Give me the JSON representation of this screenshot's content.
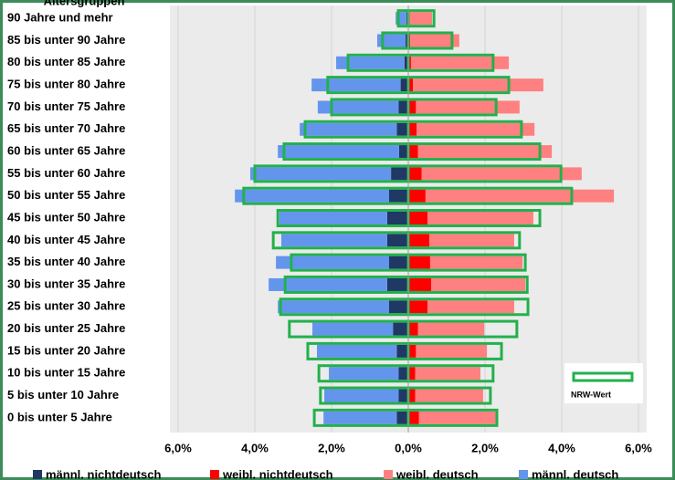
{
  "chart_data": {
    "type": "pyramid",
    "axis_title": "Altersgruppen",
    "categories": [
      "90 Jahre und mehr",
      "85 bis unter 90 Jahre",
      "80 bis unter 85 Jahre",
      "75 bis unter 80 Jahre",
      "70 bis unter 75 Jahre",
      "65 bis unter 70 Jahre",
      "60 bis unter 65 Jahre",
      "55 bis unter 60 Jahre",
      "50 bis unter 55 Jahre",
      "45 bis unter 50 Jahre",
      "40 bis unter 45 Jahre",
      "35 bis unter 40 Jahre",
      "30 bis unter 35 Jahre",
      "25 bis unter 30 Jahre",
      "20 bis unter 25 Jahre",
      "15 bis unter 20 Jahre",
      "10 bis unter 15 Jahre",
      "5 bis unter 10 Jahre",
      "0 bis unter 5 Jahre"
    ],
    "series": [
      {
        "name": "männl. nichtdeutsch",
        "color": "#1f3864",
        "side": "male",
        "values": [
          -0.05,
          -0.07,
          -0.1,
          -0.2,
          -0.25,
          -0.3,
          -0.24,
          -0.45,
          -0.5,
          -0.55,
          -0.55,
          -0.5,
          -0.55,
          -0.5,
          -0.4,
          -0.3,
          -0.25,
          -0.25,
          -0.3
        ]
      },
      {
        "name": "weibl. nichtdeutsch",
        "color": "#ff0000",
        "side": "female",
        "values": [
          0.03,
          0.05,
          0.07,
          0.12,
          0.2,
          0.22,
          0.25,
          0.35,
          0.45,
          0.5,
          0.55,
          0.57,
          0.6,
          0.5,
          0.25,
          0.2,
          0.18,
          0.18,
          0.28
        ]
      },
      {
        "name": "weibl. deutsch",
        "color": "#ff8080",
        "side": "female",
        "values": [
          0.59,
          1.28,
          2.55,
          3.4,
          2.7,
          3.07,
          3.49,
          4.17,
          4.91,
          2.76,
          2.21,
          2.41,
          2.45,
          2.26,
          1.73,
          1.85,
          1.7,
          1.77,
          2.05
        ]
      },
      {
        "name": "männl. deutsch",
        "color": "#6495ed",
        "side": "male",
        "values": [
          -0.28,
          -0.74,
          -1.78,
          -2.32,
          -2.11,
          -2.53,
          -3.16,
          -3.67,
          -4.02,
          -2.81,
          -2.76,
          -2.95,
          -3.09,
          -2.9,
          -2.1,
          -2.08,
          -1.82,
          -1.94,
          -1.91
        ]
      }
    ],
    "nrw": {
      "name": "NRW-Wert",
      "color": "#22b14c",
      "male": [
        -0.26,
        -0.67,
        -1.57,
        -2.1,
        -2.0,
        -2.69,
        -3.24,
        -4.0,
        -4.29,
        -3.4,
        -3.52,
        -3.05,
        -3.21,
        -3.33,
        -3.1,
        -2.62,
        -2.33,
        -2.29,
        -2.45
      ],
      "female": [
        0.67,
        1.14,
        2.21,
        2.62,
        2.29,
        2.95,
        3.43,
        3.98,
        4.26,
        3.43,
        2.9,
        3.05,
        3.1,
        3.12,
        2.83,
        2.43,
        2.21,
        2.14,
        2.31
      ]
    },
    "xlim": [
      -6,
      6
    ],
    "xticks": [
      {
        "value": -6,
        "label": "6,0%"
      },
      {
        "value": -4,
        "label": "4,0%"
      },
      {
        "value": -2,
        "label": "2,0%"
      },
      {
        "value": 0,
        "label": "0,0%"
      },
      {
        "value": 2,
        "label": "2,0%"
      },
      {
        "value": 4,
        "label": "4,0%"
      },
      {
        "value": 6,
        "label": "6,0%"
      }
    ],
    "grid": true
  }
}
